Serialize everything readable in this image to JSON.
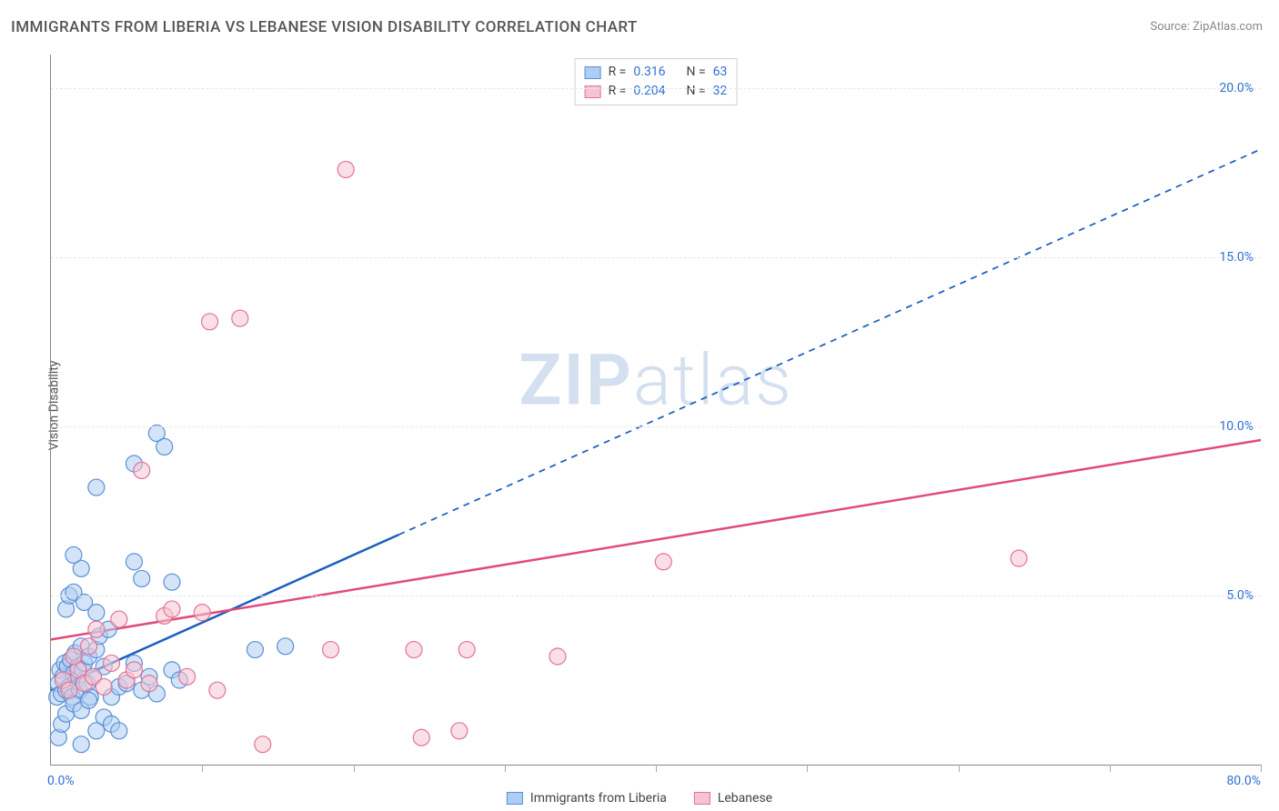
{
  "title": "IMMIGRANTS FROM LIBERIA VS LEBANESE VISION DISABILITY CORRELATION CHART",
  "source_label": "Source: ",
  "source_name": "ZipAtlas.com",
  "y_axis_label": "Vision Disability",
  "watermark_a": "ZIP",
  "watermark_b": "atlas",
  "chart": {
    "type": "scatter",
    "xlim": [
      0,
      80
    ],
    "ylim": [
      0,
      21
    ],
    "x_origin_label": "0.0%",
    "x_max_label": "80.0%",
    "y_ticks": [
      5,
      10,
      15,
      20
    ],
    "y_tick_labels": [
      "5.0%",
      "10.0%",
      "15.0%",
      "20.0%"
    ],
    "x_tick_positions": [
      10,
      20,
      30,
      40,
      50,
      60,
      70,
      80
    ],
    "background_color": "#ffffff",
    "grid_color": "#e8e8e8",
    "axis_color": "#888888",
    "marker_radius": 9,
    "marker_opacity": 0.55,
    "series": [
      {
        "name": "Immigrants from Liberia",
        "color_fill": "#aecdf2",
        "color_stroke": "#5b8fd6",
        "trend_color": "#1b5fbf",
        "trend_width": 2.5,
        "R": "0.316",
        "N": "63",
        "trend_solid_to_x": 23,
        "trend": {
          "x0": 0,
          "y0": 2.2,
          "x1": 80,
          "y1": 18.2
        },
        "points": [
          [
            0.4,
            2.0
          ],
          [
            0.5,
            2.4
          ],
          [
            0.6,
            2.8
          ],
          [
            0.7,
            2.1
          ],
          [
            0.8,
            2.6
          ],
          [
            0.9,
            3.0
          ],
          [
            1.0,
            2.2
          ],
          [
            1.1,
            2.9
          ],
          [
            1.2,
            2.3
          ],
          [
            1.3,
            3.1
          ],
          [
            1.4,
            2.0
          ],
          [
            1.5,
            2.7
          ],
          [
            1.6,
            3.3
          ],
          [
            1.7,
            2.5
          ],
          [
            1.8,
            2.9
          ],
          [
            1.9,
            2.2
          ],
          [
            2.0,
            3.5
          ],
          [
            2.1,
            2.8
          ],
          [
            2.2,
            3.0
          ],
          [
            2.4,
            2.4
          ],
          [
            2.5,
            3.2
          ],
          [
            2.6,
            2.0
          ],
          [
            2.8,
            2.6
          ],
          [
            3.0,
            3.4
          ],
          [
            3.2,
            3.8
          ],
          [
            3.5,
            2.9
          ],
          [
            3.8,
            4.0
          ],
          [
            1.0,
            4.6
          ],
          [
            1.2,
            5.0
          ],
          [
            1.5,
            5.1
          ],
          [
            2.2,
            4.8
          ],
          [
            3.0,
            4.5
          ],
          [
            0.5,
            0.8
          ],
          [
            0.7,
            1.2
          ],
          [
            1.0,
            1.5
          ],
          [
            1.5,
            1.8
          ],
          [
            2.0,
            1.6
          ],
          [
            2.5,
            1.9
          ],
          [
            3.5,
            1.4
          ],
          [
            4.0,
            2.0
          ],
          [
            4.5,
            2.3
          ],
          [
            5.0,
            2.4
          ],
          [
            5.5,
            3.0
          ],
          [
            6.0,
            2.2
          ],
          [
            6.5,
            2.6
          ],
          [
            7.0,
            2.1
          ],
          [
            8.0,
            2.8
          ],
          [
            8.5,
            2.5
          ],
          [
            2.0,
            5.8
          ],
          [
            1.5,
            6.2
          ],
          [
            5.5,
            6.0
          ],
          [
            3.0,
            8.2
          ],
          [
            5.5,
            8.9
          ],
          [
            7.0,
            9.8
          ],
          [
            7.5,
            9.4
          ],
          [
            13.5,
            3.4
          ],
          [
            15.5,
            3.5
          ],
          [
            3.0,
            1.0
          ],
          [
            4.0,
            1.2
          ],
          [
            4.5,
            1.0
          ],
          [
            2.0,
            0.6
          ],
          [
            6.0,
            5.5
          ],
          [
            8.0,
            5.4
          ]
        ]
      },
      {
        "name": "Lebanese",
        "color_fill": "#f6c4d1",
        "color_stroke": "#e27396",
        "trend_color": "#e14b7a",
        "trend_width": 2.5,
        "R": "0.204",
        "N": "32",
        "trend_solid_to_x": 80,
        "trend": {
          "x0": 0,
          "y0": 3.7,
          "x1": 80,
          "y1": 9.6
        },
        "points": [
          [
            0.8,
            2.5
          ],
          [
            1.2,
            2.2
          ],
          [
            1.8,
            2.8
          ],
          [
            2.2,
            2.4
          ],
          [
            2.8,
            2.6
          ],
          [
            3.5,
            2.3
          ],
          [
            4.0,
            3.0
          ],
          [
            5.0,
            2.5
          ],
          [
            5.5,
            2.8
          ],
          [
            6.5,
            2.4
          ],
          [
            7.5,
            4.4
          ],
          [
            8.0,
            4.6
          ],
          [
            9.0,
            2.6
          ],
          [
            10.0,
            4.5
          ],
          [
            11.0,
            2.2
          ],
          [
            14.0,
            0.6
          ],
          [
            18.5,
            3.4
          ],
          [
            24.0,
            3.4
          ],
          [
            27.5,
            3.4
          ],
          [
            33.5,
            3.2
          ],
          [
            24.5,
            0.8
          ],
          [
            27.0,
            1.0
          ],
          [
            6.0,
            8.7
          ],
          [
            10.5,
            13.1
          ],
          [
            12.5,
            13.2
          ],
          [
            19.5,
            17.6
          ],
          [
            40.5,
            6.0
          ],
          [
            64.0,
            6.1
          ],
          [
            4.5,
            4.3
          ],
          [
            3.0,
            4.0
          ],
          [
            1.5,
            3.2
          ],
          [
            2.5,
            3.5
          ]
        ]
      }
    ]
  },
  "legend": {
    "r_label": "R =",
    "n_label": "N ="
  }
}
